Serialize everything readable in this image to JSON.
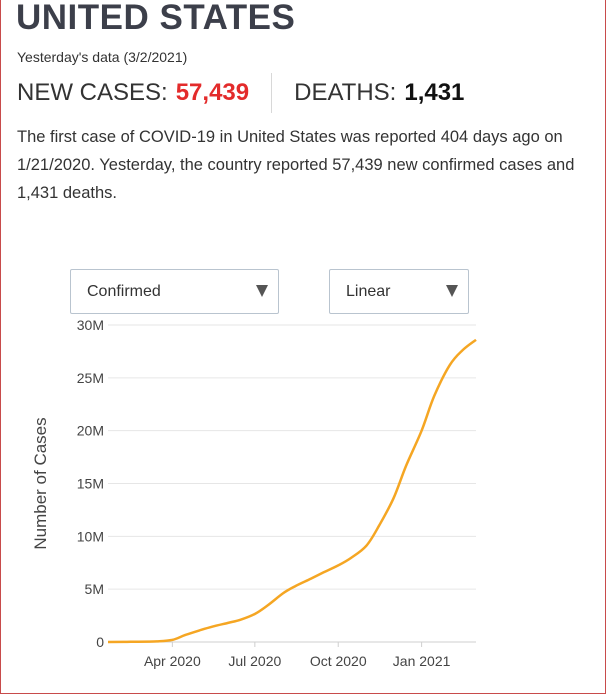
{
  "header": {
    "title": "UNITED STATES",
    "subtitle": "Yesterday's data (3/2/2021)"
  },
  "stats": {
    "new_cases_label": "NEW CASES:",
    "new_cases_value": "57,439",
    "deaths_label": "DEATHS:",
    "deaths_value": "1,431"
  },
  "summary": {
    "p1": "The first case of ",
    "disease": "COVID-19",
    "p2": " in United States was reported ",
    "days": "404",
    "p3": " days ago on 1/21/2020. Yesterday, the country reported 57,439 new confirmed cases and 1,431 deaths."
  },
  "controls": {
    "metric_selected": "Confirmed",
    "scale_selected": "Linear"
  },
  "colors": {
    "accent_red": "#e32b2b",
    "line": "#f5a623",
    "border": "#c84b4b"
  },
  "chart_data": {
    "type": "line",
    "title": "",
    "xlabel": "",
    "ylabel": "Number of Cases",
    "ylim": [
      0,
      30000000
    ],
    "x_ticks": [
      "Apr 2020",
      "Jul 2020",
      "Oct 2020",
      "Jan 2021"
    ],
    "y_ticks": [
      "0",
      "5M",
      "10M",
      "15M",
      "20M",
      "25M",
      "30M"
    ],
    "y_tick_values": [
      0,
      5000000,
      10000000,
      15000000,
      20000000,
      25000000,
      30000000
    ],
    "grid": true,
    "series": [
      {
        "name": "",
        "x": [
          "2020-01-21",
          "2020-02-15",
          "2020-03-15",
          "2020-04-01",
          "2020-04-15",
          "2020-05-01",
          "2020-05-15",
          "2020-06-01",
          "2020-06-15",
          "2020-07-01",
          "2020-07-15",
          "2020-08-01",
          "2020-08-15",
          "2020-09-01",
          "2020-09-15",
          "2020-10-01",
          "2020-10-15",
          "2020-11-01",
          "2020-11-15",
          "2020-12-01",
          "2020-12-15",
          "2021-01-01",
          "2021-01-15",
          "2021-02-01",
          "2021-02-15",
          "2021-03-02"
        ],
        "y": [
          0,
          20000,
          60000,
          200000,
          650000,
          1100000,
          1450000,
          1800000,
          2100000,
          2650000,
          3450000,
          4600000,
          5300000,
          6000000,
          6600000,
          7250000,
          7950000,
          9100000,
          11000000,
          13600000,
          16700000,
          20000000,
          23300000,
          26200000,
          27600000,
          28600000
        ]
      }
    ]
  }
}
